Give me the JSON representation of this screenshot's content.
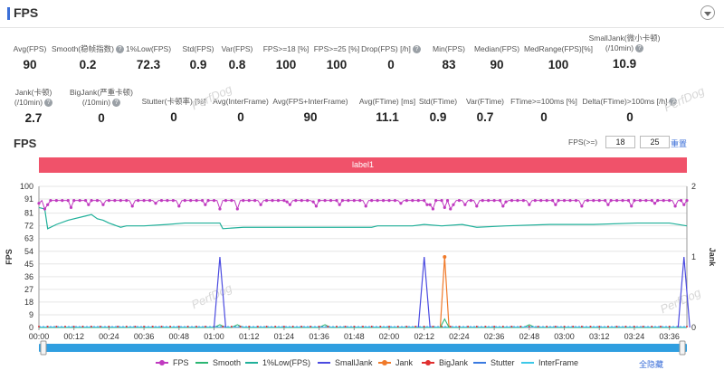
{
  "header": {
    "title": "FPS"
  },
  "stats": [
    {
      "label": "Avg(FPS)",
      "value": "90",
      "help": false
    },
    {
      "label": "Smooth(稳帧指数)",
      "value": "0.2",
      "help": true
    },
    {
      "label": "1%Low(FPS)",
      "value": "72.3",
      "help": false
    },
    {
      "label": "Std(FPS)",
      "value": "0.9",
      "help": false
    },
    {
      "label": "Var(FPS)",
      "value": "0.8",
      "help": false
    },
    {
      "label": "FPS>=18 [%]",
      "value": "100",
      "help": false
    },
    {
      "label": "FPS>=25 [%]",
      "value": "100",
      "help": false
    },
    {
      "label": "Drop(FPS) [/h]",
      "value": "0",
      "help": true
    },
    {
      "label": "Min(FPS)",
      "value": "83",
      "help": false
    },
    {
      "label": "Median(FPS)",
      "value": "90",
      "help": false
    },
    {
      "label": "MedRange(FPS)[%]",
      "value": "100",
      "help": false
    },
    {
      "label": "SmallJank(微小卡顿)",
      "label2": "(/10min)",
      "value": "10.9",
      "help": true
    },
    {
      "label": "Jank(卡顿)",
      "label2": "(/10min)",
      "value": "2.7",
      "help": true
    },
    {
      "label": "BigJank(严重卡顿)",
      "label2": "(/10min)",
      "value": "0",
      "help": true
    },
    {
      "label": "Stutter(卡顿率) [%]",
      "value": "0",
      "help": false
    },
    {
      "label": "Avg(InterFrame)",
      "value": "0",
      "help": false
    },
    {
      "label": "Avg(FPS+InterFrame)",
      "value": "90",
      "help": false
    },
    {
      "label": "Avg(FTime) [ms]",
      "value": "11.1",
      "help": false
    },
    {
      "label": "Std(FTime)",
      "value": "0.9",
      "help": false
    },
    {
      "label": "Var(FTime)",
      "value": "0.7",
      "help": false
    },
    {
      "label": "FTime>=100ms [%]",
      "value": "0",
      "help": false
    },
    {
      "label": "Delta(FTime)>100ms [/h]",
      "value": "0",
      "help": true
    }
  ],
  "watermark": "PerfDog",
  "chart_section": {
    "title": "FPS",
    "fps_threshold_label": "FPS(>=)",
    "fps_threshold_1": "18",
    "fps_threshold_2": "25",
    "reset_label": "重置",
    "label_bar": "label1",
    "hide_all_label": "全隐藏"
  },
  "chart_data": {
    "type": "line",
    "ylabel": "FPS",
    "y2label": "Jank",
    "ylim": [
      0,
      100
    ],
    "y_ticks": [
      0,
      9,
      18,
      27,
      36,
      45,
      54,
      63,
      72,
      81,
      91,
      100
    ],
    "y2lim": [
      0,
      2
    ],
    "y2_ticks": [
      0,
      1,
      2
    ],
    "x_ticks": [
      "00:00",
      "00:12",
      "00:24",
      "00:36",
      "00:48",
      "01:00",
      "01:12",
      "01:24",
      "01:36",
      "01:48",
      "02:00",
      "02:12",
      "02:24",
      "02:36",
      "02:48",
      "03:00",
      "03:12",
      "03:24",
      "03:36"
    ],
    "duration_s": 222,
    "series": [
      {
        "name": "FPS",
        "color": "#c03ac0",
        "axis": "left",
        "marker": true,
        "base": 90,
        "dips": [
          [
            0,
            88
          ],
          [
            2,
            86
          ],
          [
            3,
            87
          ],
          [
            11,
            86
          ],
          [
            17,
            87
          ],
          [
            22,
            87
          ],
          [
            32,
            86
          ],
          [
            40,
            88
          ],
          [
            48,
            86
          ],
          [
            57,
            87
          ],
          [
            62,
            85
          ],
          [
            68,
            84
          ],
          [
            76,
            87
          ],
          [
            86,
            87
          ],
          [
            95,
            86
          ],
          [
            103,
            87
          ],
          [
            112,
            86
          ],
          [
            124,
            88
          ],
          [
            133,
            87
          ],
          [
            142,
            87
          ],
          [
            150,
            86
          ],
          [
            159,
            86
          ],
          [
            168,
            87
          ],
          [
            177,
            87
          ],
          [
            186,
            86
          ],
          [
            195,
            87
          ],
          [
            203,
            86
          ],
          [
            211,
            88
          ],
          [
            218,
            86
          ],
          [
            221,
            87
          ],
          [
            135,
            84
          ],
          [
            134,
            87
          ],
          [
            139,
            85
          ],
          [
            146,
            87
          ],
          [
            94,
            89
          ],
          [
            85,
            89
          ],
          [
            160,
            89
          ]
        ],
        "notable": [
          [
            2,
            84
          ],
          [
            11,
            85
          ],
          [
            62,
            84
          ],
          [
            68,
            84
          ],
          [
            135,
            84
          ],
          [
            141,
            84
          ]
        ]
      },
      {
        "name": "Smooth",
        "color": "#2bb673",
        "axis": "right",
        "marker": false
      },
      {
        "name": "1%Low(FPS)",
        "color": "#20b09a",
        "axis": "left",
        "marker": false,
        "points": [
          [
            0,
            85
          ],
          [
            2,
            84
          ],
          [
            3,
            70
          ],
          [
            6,
            73
          ],
          [
            10,
            76
          ],
          [
            16,
            79
          ],
          [
            18,
            80
          ],
          [
            20,
            77
          ],
          [
            22,
            76
          ],
          [
            24,
            74
          ],
          [
            28,
            71
          ],
          [
            30,
            72
          ],
          [
            32,
            72
          ],
          [
            36,
            72
          ],
          [
            44,
            73
          ],
          [
            50,
            74
          ],
          [
            62,
            74
          ],
          [
            63,
            70
          ],
          [
            70,
            71
          ],
          [
            80,
            71
          ],
          [
            92,
            71
          ],
          [
            104,
            71
          ],
          [
            114,
            71
          ],
          [
            116,
            72
          ],
          [
            128,
            72
          ],
          [
            132,
            73
          ],
          [
            138,
            72
          ],
          [
            145,
            73
          ],
          [
            150,
            71
          ],
          [
            160,
            72
          ],
          [
            175,
            73
          ],
          [
            190,
            73
          ],
          [
            205,
            74
          ],
          [
            216,
            74
          ],
          [
            222,
            72
          ]
        ]
      },
      {
        "name": "SmallJank",
        "color": "#4a4ae0",
        "axis": "right",
        "marker": false,
        "spikes": [
          [
            62,
            1
          ],
          [
            132,
            1
          ],
          [
            221,
            1
          ]
        ]
      },
      {
        "name": "Jank",
        "color": "#f07a2a",
        "axis": "right",
        "marker": true,
        "spikes": [
          [
            139,
            1
          ]
        ]
      },
      {
        "name": "BigJank",
        "color": "#e03030",
        "axis": "right",
        "marker": true
      },
      {
        "name": "Stutter",
        "color": "#3a7ae0",
        "axis": "right",
        "marker": false
      },
      {
        "name": "InterFrame",
        "color": "#3cc8e8",
        "axis": "right",
        "marker": false
      }
    ]
  }
}
